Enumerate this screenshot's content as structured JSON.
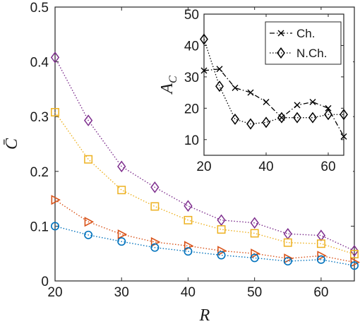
{
  "chart_data": [
    {
      "type": "line",
      "xlabel": "R",
      "ylabel": "C̄",
      "xlim": [
        20,
        65
      ],
      "ylim": [
        0,
        0.5
      ],
      "xticks": [
        "20",
        "30",
        "40",
        "50",
        "60"
      ],
      "yticks": [
        "0",
        "0.1",
        "0.2",
        "0.3",
        "0.4",
        "0.5"
      ],
      "grid": false,
      "x": [
        20,
        25,
        30,
        35,
        40,
        45,
        50,
        55,
        60,
        65
      ],
      "series": [
        {
          "marker": "diamond",
          "color": "#7e2f8e",
          "values": [
            0.408,
            0.293,
            0.209,
            0.171,
            0.137,
            0.111,
            0.106,
            0.086,
            0.083,
            0.055
          ]
        },
        {
          "marker": "square",
          "color": "#edb120",
          "values": [
            0.308,
            0.222,
            0.166,
            0.136,
            0.111,
            0.094,
            0.087,
            0.07,
            0.068,
            0.049
          ]
        },
        {
          "marker": "triangle-right",
          "color": "#d95319",
          "values": [
            0.148,
            0.108,
            0.085,
            0.071,
            0.064,
            0.055,
            0.05,
            0.041,
            0.046,
            0.034
          ]
        },
        {
          "marker": "circle",
          "color": "#0072bd",
          "values": [
            0.1,
            0.084,
            0.072,
            0.061,
            0.054,
            0.047,
            0.042,
            0.036,
            0.039,
            0.028
          ]
        }
      ]
    },
    {
      "type": "line",
      "inset": true,
      "ylabel": "A_C",
      "xlim": [
        20,
        65
      ],
      "ylim": [
        5,
        50
      ],
      "xticks": [
        "20",
        "40",
        "60"
      ],
      "yticks": [
        "10",
        "20",
        "30",
        "40",
        "50"
      ],
      "legend": "top-right",
      "x": [
        20,
        25,
        30,
        35,
        40,
        45,
        50,
        55,
        60,
        65
      ],
      "series": [
        {
          "name": "Ch.",
          "marker": "x",
          "style": "dashdot",
          "color": "#000000",
          "values": [
            32,
            32.5,
            26.5,
            25,
            22,
            17,
            21,
            22,
            20,
            11
          ]
        },
        {
          "name": "N.Ch.",
          "marker": "diamond",
          "style": "dotted",
          "color": "#000000",
          "values": [
            42,
            27,
            16.5,
            15,
            15.5,
            17,
            17,
            17,
            18,
            18
          ]
        }
      ]
    }
  ]
}
